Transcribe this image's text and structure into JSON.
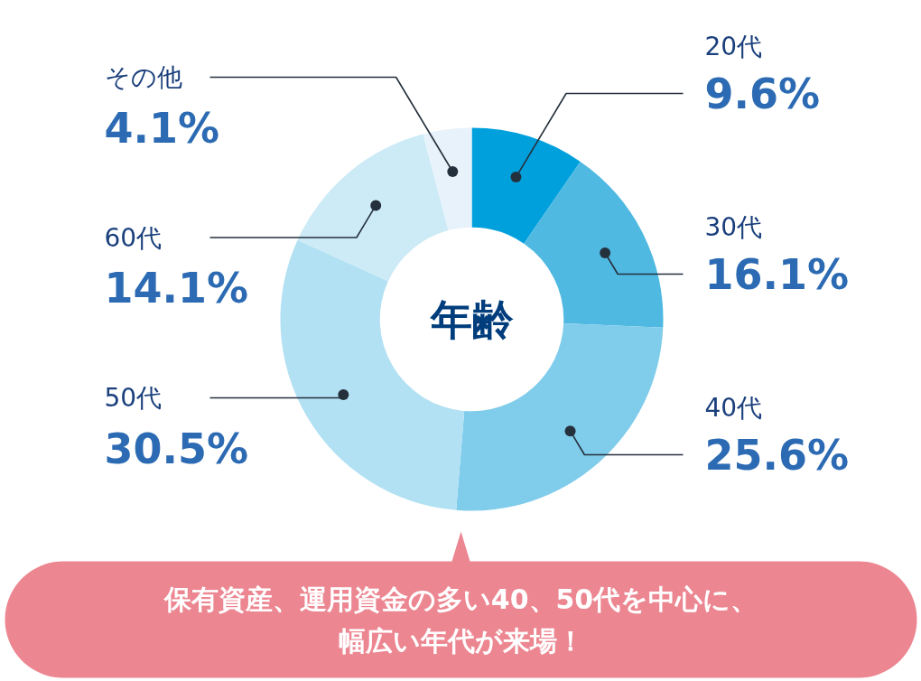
{
  "chart_data": {
    "type": "donut",
    "title": "年齢",
    "categories": [
      "20代",
      "30代",
      "40代",
      "50代",
      "60代",
      "その他"
    ],
    "values": [
      9.6,
      16.1,
      25.6,
      30.5,
      14.1,
      4.1
    ],
    "colors": [
      "#00a0dd",
      "#4fb9e2",
      "#80cceb",
      "#b2e1f3",
      "#ccebf6",
      "#e8f2fa"
    ],
    "value_labels": [
      "9.6%",
      "16.1%",
      "25.6%",
      "30.5%",
      "14.1%",
      "4.1%"
    ],
    "annotations": [
      "保有資産、運用資金の多い40、50代を中心に、幅広い年代が来場！"
    ]
  }
}
